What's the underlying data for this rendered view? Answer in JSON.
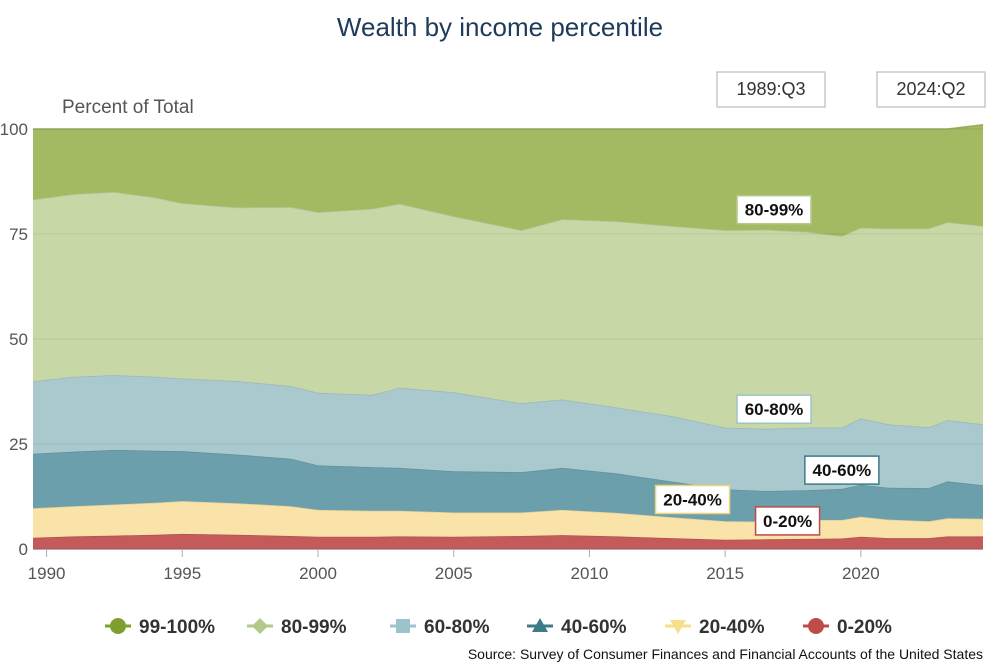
{
  "chart_data": {
    "type": "area",
    "stacked": true,
    "title": "Wealth by income percentile",
    "ylabel": "Percent of Total",
    "xlabel": "",
    "xlim": [
      1989.5,
      2024.5
    ],
    "ylim": [
      0,
      100
    ],
    "x_ticks": [
      1990,
      1995,
      2000,
      2005,
      2010,
      2015,
      2020
    ],
    "y_ticks": [
      0,
      25,
      50,
      75,
      100
    ],
    "range_start": "1989:Q3",
    "range_end": "2024:Q2",
    "source": "Source: Survey of Consumer Finances and Financial Accounts of the United States",
    "x": [
      1989.5,
      1991,
      1992.5,
      1994,
      1995,
      1997,
      1999,
      2000,
      2002,
      2003,
      2005,
      2007.5,
      2009,
      2011,
      2013,
      2015,
      2016.5,
      2018,
      2019.3,
      2020,
      2021,
      2022.5,
      2023.2,
      2024.5
    ],
    "series": [
      {
        "name": "0-20%",
        "color": "#c45a5a",
        "values": [
          2.7,
          3.0,
          3.2,
          3.4,
          3.6,
          3.4,
          3.1,
          2.9,
          2.9,
          3.0,
          2.9,
          3.1,
          3.3,
          3.0,
          2.6,
          2.2,
          2.3,
          2.4,
          2.5,
          2.9,
          2.6,
          2.6,
          3.0,
          3.0
        ]
      },
      {
        "name": "20-40%",
        "color": "#f9e3a8",
        "values": [
          7.0,
          7.2,
          7.4,
          7.6,
          7.8,
          7.5,
          7.1,
          6.4,
          6.2,
          6.1,
          5.8,
          5.6,
          6.0,
          5.6,
          5.0,
          4.4,
          4.2,
          4.5,
          4.4,
          4.8,
          4.4,
          4.0,
          4.3,
          4.2
        ]
      },
      {
        "name": "40-60%",
        "color": "#6a9fab",
        "values": [
          13.0,
          13.0,
          13.0,
          12.4,
          11.9,
          11.6,
          11.3,
          10.6,
          10.4,
          10.2,
          9.8,
          9.6,
          10.0,
          9.4,
          8.5,
          7.6,
          7.3,
          7.1,
          7.4,
          7.6,
          7.6,
          7.9,
          8.8,
          8.0
        ]
      },
      {
        "name": "60-80%",
        "color": "#a9c9cf",
        "values": [
          17.2,
          17.8,
          17.8,
          17.6,
          17.3,
          17.5,
          17.3,
          17.3,
          17.2,
          19.1,
          18.8,
          16.4,
          16.3,
          15.7,
          15.6,
          14.7,
          14.8,
          14.9,
          14.6,
          15.8,
          15.1,
          14.5,
          14.6,
          14.5
        ]
      },
      {
        "name": "80-99%",
        "color": "#c8d7a6",
        "values": [
          43.3,
          43.5,
          43.6,
          42.7,
          41.7,
          41.3,
          42.6,
          43.0,
          44.3,
          43.8,
          41.9,
          41.2,
          42.9,
          44.3,
          45.2,
          47.0,
          47.4,
          46.6,
          45.6,
          45.4,
          46.6,
          47.3,
          47.1,
          47.2
        ]
      },
      {
        "name": "99-100%",
        "color": "#a3ba62",
        "values": [
          16.8,
          15.5,
          15.0,
          16.3,
          17.7,
          18.7,
          18.6,
          19.8,
          19.0,
          17.8,
          20.8,
          24.1,
          21.5,
          22.0,
          23.1,
          24.1,
          24.0,
          24.5,
          25.5,
          23.5,
          23.7,
          23.7,
          22.2,
          24.1
        ]
      }
    ],
    "legend": [
      {
        "label": "99-100%",
        "marker": "circle",
        "color": "#7e9e2e"
      },
      {
        "label": "80-99%",
        "marker": "diamond",
        "color": "#b2c98a"
      },
      {
        "label": "60-80%",
        "marker": "square",
        "color": "#9fc3cc"
      },
      {
        "label": "40-60%",
        "marker": "triangle",
        "color": "#3e7b88"
      },
      {
        "label": "20-40%",
        "marker": "triangle-down",
        "color": "#f7de8a"
      },
      {
        "label": "0-20%",
        "marker": "circle",
        "color": "#bf4a4a"
      }
    ],
    "annotations": [
      {
        "label": "80-99%",
        "x": 2016.8,
        "y": 76.5,
        "border": "#b2c98a"
      },
      {
        "label": "60-80%",
        "x": 2016.8,
        "y": 29.0,
        "border": "#9fc3cc"
      },
      {
        "label": "40-60%",
        "x": 2019.3,
        "y": 14.5,
        "border": "#3e7b88"
      },
      {
        "label": "20-40%",
        "x": 2013.8,
        "y": 7.5,
        "border": "#f1d27a"
      },
      {
        "label": "0-20%",
        "x": 2017.3,
        "y": 2.4,
        "border": "#bf4a4a"
      }
    ]
  }
}
